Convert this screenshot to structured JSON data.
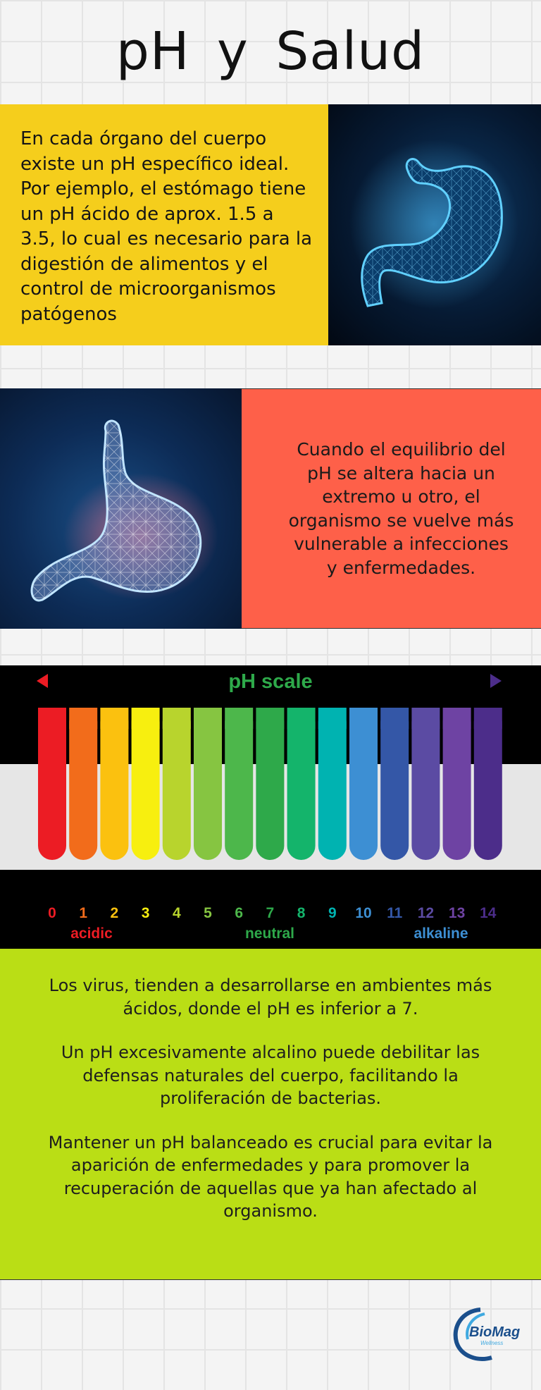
{
  "title": "pH  y  Salud",
  "section1": {
    "text": "En cada órgano del cuerpo existe un pH específico ideal. Por ejemplo, el estómago tiene un pH ácido de aprox. 1.5 a 3.5, lo cual es necesario para la digestión de alimentos y el control de microorganismos patógenos"
  },
  "section2": {
    "text": "Cuando el equilibrio del pH se altera hacia un extremo u otro, el organismo se vuelve más vulnerable a infecciones y enfermedades."
  },
  "scale": {
    "title": "pH scale",
    "numbers": [
      "0",
      "1",
      "2",
      "3",
      "4",
      "5",
      "6",
      "7",
      "8",
      "9",
      "10",
      "11",
      "12",
      "13",
      "14"
    ],
    "colors": [
      "#ec1c24",
      "#f26c1b",
      "#fbc10f",
      "#f7ef0f",
      "#b8d42d",
      "#86c541",
      "#4db74b",
      "#2ea94a",
      "#14b46b",
      "#00b3b1",
      "#3d8fd3",
      "#3457a7",
      "#5b4ba3",
      "#6e43a3",
      "#4c2d8a"
    ],
    "labels": {
      "acidic": "acidic",
      "neutral": "neutral",
      "alkaline": "alkaline"
    },
    "label_colors": {
      "acidic": "#ec1c24",
      "neutral": "#2ea94a",
      "alkaline": "#3d8fd3"
    }
  },
  "section3": {
    "p1": "Los virus, tienden a desarrollarse en ambientes más ácidos, donde el pH es inferior a 7.",
    "p2": "Un pH excesivamente alcalino puede debilitar las defensas naturales del cuerpo, facilitando la proliferación de bacterias.",
    "p3": "Mantener un pH balanceado es crucial para evitar la aparición de enfermedades y para promover la recuperación de aquellas que ya han afectado al organismo."
  },
  "logo": {
    "brand": "BioMag",
    "sub": "Wellness"
  }
}
